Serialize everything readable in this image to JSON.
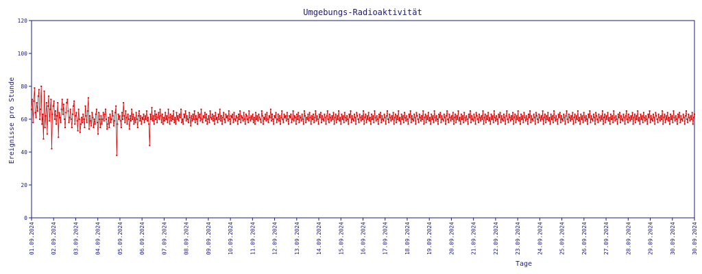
{
  "chart_data": {
    "type": "line",
    "title": "Umgebungs-Radioaktivität",
    "xlabel": "Tage",
    "ylabel": "Ereignisse pro Stunde",
    "ylim": [
      0,
      120
    ],
    "yticks": [
      0,
      20,
      40,
      60,
      80,
      100,
      120
    ],
    "xticks": [
      "01.09.2024",
      "02.09.2024",
      "03.09.2024",
      "04.09.2024",
      "05.09.2024",
      "06.09.2024",
      "07.09.2024",
      "08.09.2024",
      "09.09.2024",
      "10.09.2024",
      "11.09.2024",
      "12.09.2024",
      "13.09.2024",
      "14.09.2024",
      "15.09.2024",
      "16.09.2024",
      "17.09.2024",
      "18.09.2024",
      "19.09.2024",
      "20.09.2024",
      "21.09.2024",
      "22.09.2024",
      "23.09.2024",
      "24.09.2024",
      "25.09.2024",
      "26.09.2024",
      "27.09.2024",
      "28.09.2024",
      "29.09.2024",
      "30.09.2024",
      "30.09.2024"
    ],
    "xlim_days": [
      0,
      30
    ],
    "grid": false,
    "colors": {
      "line": "#e00000",
      "axis": "#1a1a80",
      "text": "#1a1a80"
    },
    "series": [
      {
        "values": [
          66,
          72,
          58,
          71,
          79,
          64,
          61,
          70,
          65,
          74,
          78,
          60,
          66,
          80,
          57,
          63,
          48,
          77,
          55,
          62,
          70,
          51,
          68,
          74,
          59,
          66,
          72,
          42,
          63,
          68,
          71,
          60,
          65,
          57,
          62,
          70,
          49,
          64,
          61,
          58,
          66,
          72,
          63,
          69,
          60,
          55,
          64,
          70,
          72,
          65,
          58,
          61,
          66,
          60,
          55,
          63,
          68,
          71,
          57,
          62,
          64,
          59,
          53,
          66,
          60,
          52,
          57,
          61,
          58,
          63,
          60,
          55,
          68,
          62,
          58,
          65,
          73,
          54,
          62,
          59,
          56,
          64,
          61,
          55,
          60,
          57,
          63,
          66,
          58,
          51,
          64,
          60,
          55,
          62,
          57,
          60,
          64,
          59,
          63,
          66,
          60,
          54,
          57,
          61,
          55,
          63,
          58,
          60,
          65,
          62,
          56,
          59,
          64,
          68,
          38,
          57,
          63,
          60,
          62,
          59,
          55,
          64,
          60,
          70,
          62,
          58,
          65,
          61,
          57,
          63,
          60,
          54,
          62,
          59,
          66,
          60,
          63,
          57,
          61,
          58,
          64,
          60,
          55,
          62,
          65,
          59,
          62,
          57,
          61,
          60,
          63,
          58,
          62,
          60,
          65,
          59,
          61,
          57,
          44,
          63,
          60,
          67,
          59,
          62,
          57,
          65,
          60,
          63,
          58,
          61,
          64,
          60,
          66,
          62,
          58,
          63,
          57,
          61,
          59,
          64,
          60,
          62,
          58,
          66,
          61,
          57,
          63,
          59,
          62,
          60,
          65,
          58,
          61,
          57,
          64,
          60,
          62,
          59,
          63,
          61,
          66,
          58,
          60,
          57,
          63,
          61,
          65,
          59,
          62,
          60,
          58,
          64,
          61,
          56,
          62,
          59,
          63,
          60,
          65,
          58,
          62,
          60,
          57,
          64,
          61,
          63,
          59,
          66,
          60,
          58,
          62,
          61,
          64,
          59,
          63,
          57,
          60,
          62,
          58,
          65,
          61,
          60,
          63,
          59,
          62,
          57,
          64,
          60,
          61,
          58,
          63,
          60,
          66,
          59,
          62,
          57,
          61,
          64,
          60,
          58,
          63,
          61,
          62,
          59,
          65,
          60,
          57,
          62,
          61,
          63,
          58,
          64,
          60,
          59,
          62,
          61,
          57,
          63,
          60,
          65,
          58,
          62,
          61,
          59,
          64,
          60,
          57,
          63,
          62,
          60,
          58,
          65,
          61,
          59,
          62,
          60,
          63,
          58,
          61,
          57,
          64,
          60,
          62,
          59,
          63,
          61,
          60,
          58,
          65,
          62,
          57,
          61,
          60,
          63,
          59,
          64,
          60,
          58,
          62,
          61,
          66,
          59,
          63,
          60,
          57,
          62,
          61,
          64,
          58,
          60,
          63,
          59,
          62,
          57,
          61,
          65,
          60,
          58,
          63,
          61,
          62,
          59,
          64,
          60,
          57,
          62,
          61,
          63,
          58,
          60,
          65,
          59,
          62,
          61,
          57,
          63,
          60,
          64,
          58,
          62,
          61,
          59,
          63,
          60,
          57,
          65,
          62,
          58,
          61,
          60,
          63,
          59,
          64,
          61,
          57,
          62,
          60,
          63,
          58,
          61,
          65,
          59,
          62,
          60,
          57,
          63,
          61,
          64,
          58,
          62,
          60,
          59,
          63,
          61,
          57,
          62,
          65,
          60,
          58,
          63,
          61,
          59,
          62,
          60,
          64,
          57,
          61,
          63,
          58,
          62,
          60,
          65,
          59,
          61,
          57,
          63,
          60,
          62,
          58,
          64,
          61,
          59,
          62,
          60,
          57,
          63,
          61,
          65,
          58,
          62,
          60,
          59,
          63,
          61,
          57,
          64,
          62,
          60,
          58,
          63,
          61,
          59,
          62,
          60,
          65,
          57,
          61,
          63,
          58,
          62,
          60,
          64,
          59,
          61,
          57,
          63,
          60,
          62,
          58,
          65,
          61,
          59,
          62,
          60,
          57,
          63,
          61,
          64,
          58,
          62,
          60,
          59,
          63,
          61,
          57,
          62,
          65,
          60,
          58,
          63,
          61,
          59,
          62,
          60,
          64,
          57,
          61,
          63,
          58,
          62,
          60,
          65,
          59,
          61,
          57,
          63,
          60,
          62,
          58,
          64,
          61,
          59,
          62,
          60,
          57,
          63,
          61,
          65,
          58,
          62,
          60,
          59,
          63,
          61,
          57,
          64,
          62,
          60,
          58,
          63,
          61,
          59,
          62,
          60,
          65,
          57,
          61,
          63,
          58,
          62,
          60,
          64,
          59,
          61,
          57,
          63,
          60,
          62,
          58,
          65,
          61,
          59,
          62,
          60,
          57,
          63,
          61,
          64,
          58,
          62,
          60,
          59,
          63,
          61,
          57,
          62,
          65,
          60,
          58,
          63,
          61,
          59,
          62,
          60,
          64,
          57,
          61,
          63,
          58,
          62,
          60,
          65,
          59,
          61,
          57,
          63,
          60,
          62,
          58,
          64,
          61,
          59,
          62,
          60,
          57,
          63,
          61,
          65,
          58,
          62,
          60,
          59,
          63,
          61,
          57,
          64,
          62,
          60,
          58,
          63,
          61,
          59,
          62,
          60,
          65,
          57,
          61,
          63,
          58,
          62,
          60,
          64,
          59,
          61,
          57,
          63,
          60,
          62,
          58,
          65,
          61,
          59,
          62,
          60,
          57,
          63,
          61,
          64,
          58,
          62,
          60,
          59,
          63,
          61,
          57,
          62,
          65,
          60,
          58,
          63,
          61,
          59,
          62,
          60,
          64,
          57,
          61,
          63,
          58,
          62,
          60,
          65,
          59,
          61,
          57,
          63,
          60,
          62,
          58,
          64,
          61,
          59,
          62,
          60,
          57,
          63,
          61,
          65,
          58,
          62,
          60,
          59,
          63,
          61,
          57,
          64,
          62,
          60,
          58,
          63,
          61,
          59,
          62,
          60,
          65,
          57,
          61,
          63,
          58,
          62,
          60,
          64,
          59,
          61,
          57,
          63,
          60,
          62,
          58,
          65,
          61,
          59,
          62,
          60,
          57,
          63,
          61,
          64,
          58,
          62,
          60,
          59,
          63,
          61,
          57,
          62,
          65,
          60,
          58,
          63,
          61,
          59,
          62,
          60,
          64,
          57,
          61,
          63,
          58,
          62,
          60,
          65,
          59,
          61,
          57,
          63,
          60,
          62,
          58,
          64,
          61,
          59,
          62,
          60,
          57,
          63,
          61,
          65,
          58,
          62,
          60,
          59,
          63,
          61,
          57,
          64,
          62,
          60,
          58,
          63,
          61,
          59,
          62,
          60,
          65,
          57,
          61,
          63,
          58,
          62,
          60,
          64,
          59,
          61,
          57,
          63,
          60,
          62,
          58,
          65,
          61,
          59,
          62,
          60,
          57,
          63,
          61,
          64,
          58,
          62,
          60,
          59,
          63,
          61,
          57,
          62,
          65,
          60,
          58,
          63,
          61,
          59,
          62,
          60,
          64,
          57,
          61,
          63,
          58,
          62,
          60,
          65,
          59,
          61,
          57,
          63,
          60,
          62,
          58,
          64,
          61,
          59,
          62,
          60,
          57,
          63,
          61,
          65,
          58,
          62,
          60,
          59,
          63,
          61,
          57,
          64,
          62,
          60,
          58,
          63,
          61,
          59,
          62,
          60,
          65,
          57,
          61,
          63,
          58,
          62,
          60,
          64,
          59,
          61,
          57,
          63,
          60,
          62,
          58,
          65,
          61,
          59,
          62,
          60,
          57,
          63,
          61,
          64,
          58,
          62,
          60,
          59,
          63,
          61,
          57,
          62,
          65,
          60,
          58,
          63,
          61,
          59,
          62,
          60,
          64,
          57,
          61,
          63
        ]
      }
    ]
  }
}
